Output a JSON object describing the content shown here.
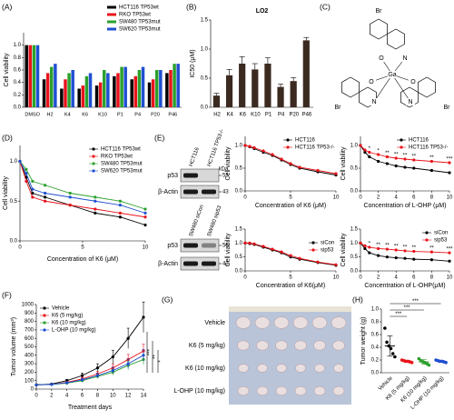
{
  "chart_data": [
    {
      "panel": "(A)",
      "type": "bar",
      "ylabel": "Cell viability",
      "categories": [
        "DMSO",
        "H2",
        "K4",
        "K6",
        "K10",
        "P1",
        "P4",
        "P20",
        "P46"
      ],
      "series": [
        {
          "name": "HCT116 TP53wt",
          "color": "#000000",
          "values": [
            1.0,
            0.45,
            0.3,
            0.3,
            0.35,
            0.5,
            0.45,
            0.4,
            0.55
          ]
        },
        {
          "name": "RKO TP53wt",
          "color": "#e8141b",
          "values": [
            1.0,
            0.55,
            0.45,
            0.35,
            0.4,
            0.55,
            0.5,
            0.45,
            0.6
          ]
        },
        {
          "name": "SW480 TP53mut",
          "color": "#2ca02c",
          "values": [
            1.0,
            0.65,
            0.55,
            0.5,
            0.6,
            0.65,
            0.6,
            0.6,
            0.7
          ]
        },
        {
          "name": "SW620 TP53mut",
          "color": "#1f4fd1",
          "values": [
            1.0,
            0.7,
            0.6,
            0.55,
            0.55,
            0.65,
            0.65,
            0.6,
            0.7
          ]
        }
      ],
      "ylim": [
        0,
        1.2
      ],
      "yticks": [
        {
          "value": 0,
          "label": "0.0"
        },
        0.2,
        0.4,
        0.6,
        0.8,
        {
          "value": 1,
          "label": "1.0"
        }
      ],
      "legend": "above"
    },
    {
      "panel": "(B)",
      "type": "bar",
      "title": "LO2",
      "ylabel": "IC50 (μM)",
      "categories": [
        "H2",
        "K4",
        "K6",
        "K10",
        "P1",
        "P4",
        "P20",
        "P46"
      ],
      "values": [
        0.2,
        0.55,
        0.75,
        0.65,
        0.75,
        0.35,
        0.45,
        1.15
      ],
      "errors": [
        0.04,
        0.1,
        0.12,
        0.1,
        0.1,
        0.05,
        0.06,
        0.05
      ],
      "color": "#3b2a20",
      "ylim": [
        0,
        1.5
      ],
      "yticks": [
        {
          "value": 0,
          "label": "0.0"
        },
        0.5,
        {
          "value": 1,
          "label": "1.0"
        },
        1.5
      ]
    },
    {
      "panel": "(D)",
      "type": "line",
      "xlabel": "Concentration of K6 (μM)",
      "ylabel": "Cell viability",
      "x": [
        0,
        0.5,
        1,
        2,
        4,
        6,
        8,
        10
      ],
      "series": [
        {
          "name": "HCT116 TP53wt",
          "color": "#000000",
          "values": [
            1.0,
            0.8,
            0.6,
            0.55,
            0.45,
            0.35,
            0.3,
            0.2
          ]
        },
        {
          "name": "RKO TP53wt",
          "color": "#e8141b",
          "values": [
            1.0,
            0.75,
            0.55,
            0.5,
            0.45,
            0.4,
            0.35,
            0.3
          ]
        },
        {
          "name": "SW480 TP53mut",
          "color": "#2ca02c",
          "values": [
            1.0,
            0.9,
            0.75,
            0.7,
            0.6,
            0.55,
            0.5,
            0.4
          ]
        },
        {
          "name": "SW620 TP53mut",
          "color": "#1f4fd1",
          "values": [
            1.0,
            0.85,
            0.65,
            0.6,
            0.55,
            0.5,
            0.45,
            0.35
          ]
        }
      ],
      "xlim": [
        0,
        10
      ],
      "xticks": [
        0,
        5,
        10
      ],
      "ylim": [
        0,
        1.2
      ],
      "yticks": [
        {
          "value": 0,
          "label": "0.0"
        },
        0.5,
        {
          "value": 1,
          "label": "1.0"
        }
      ],
      "legend": "top-right"
    },
    {
      "type": "line",
      "xlabel": "Concentration of K6 (μM)",
      "ylabel": "Cell viability",
      "x": [
        0,
        0.5,
        1,
        2,
        3,
        4,
        5,
        6,
        8,
        10
      ],
      "series": [
        {
          "name": "HCT116",
          "color": "#000000",
          "values": [
            1.0,
            0.97,
            0.93,
            0.85,
            0.78,
            0.68,
            0.58,
            0.5,
            0.42,
            0.35
          ]
        },
        {
          "name": "HCT116 TP53-/-",
          "color": "#e8141b",
          "values": [
            1.0,
            0.98,
            0.95,
            0.88,
            0.8,
            0.7,
            0.6,
            0.52,
            0.45,
            0.38
          ]
        }
      ],
      "xlim": [
        0,
        10
      ],
      "xticks": [
        0,
        5,
        10
      ],
      "ylim": [
        0,
        1.2
      ],
      "yticks": [
        {
          "value": 0,
          "label": "0.0"
        },
        0.5,
        {
          "value": 1,
          "label": "1.0"
        }
      ],
      "legend": "top-right"
    },
    {
      "type": "line",
      "xlabel": "Concentration of L-OHP (μM)",
      "ylabel": "Cell viability",
      "x": [
        0,
        0.5,
        1,
        2,
        3,
        4,
        5,
        6,
        8,
        10
      ],
      "series": [
        {
          "name": "HCT116",
          "color": "#000000",
          "values": [
            1.0,
            0.85,
            0.75,
            0.65,
            0.6,
            0.55,
            0.52,
            0.5,
            0.45,
            0.4
          ]
        },
        {
          "name": "HCT116 TP53-/-",
          "color": "#e8141b",
          "values": [
            1.0,
            0.9,
            0.85,
            0.8,
            0.75,
            0.72,
            0.7,
            0.68,
            0.65,
            0.62
          ]
        }
      ],
      "significance": [
        null,
        null,
        "*",
        "*",
        "**",
        "**",
        "**",
        "**",
        "**",
        "***"
      ],
      "xlim": [
        0,
        10
      ],
      "xticks": [
        0,
        2,
        4,
        6,
        8,
        10
      ],
      "ylim": [
        0,
        1.2
      ],
      "yticks": [
        {
          "value": 0,
          "label": "0.0"
        },
        0.5,
        {
          "value": 1,
          "label": "1.0"
        }
      ],
      "legend": "top-right"
    },
    {
      "type": "line",
      "xlabel": "Concentration of K6(μM)",
      "ylabel": "Cell viability",
      "x": [
        0,
        0.5,
        1,
        2,
        3,
        4,
        5,
        6,
        8,
        10
      ],
      "series": [
        {
          "name": "siCon",
          "color": "#000000",
          "values": [
            1.0,
            0.98,
            0.95,
            0.85,
            0.75,
            0.65,
            0.5,
            0.42,
            0.3,
            0.2
          ]
        },
        {
          "name": "sip53",
          "color": "#e8141b",
          "values": [
            1.0,
            1.0,
            0.97,
            0.88,
            0.78,
            0.68,
            0.55,
            0.45,
            0.32,
            0.22
          ]
        }
      ],
      "xlim": [
        0,
        10
      ],
      "xticks": [
        0,
        5,
        10
      ],
      "ylim": [
        0,
        1.5
      ],
      "yticks": [
        {
          "value": 0,
          "label": "0.0"
        },
        0.5,
        {
          "value": 1,
          "label": "1.0"
        },
        1.5
      ],
      "legend": "center-right"
    },
    {
      "type": "line",
      "xlabel": "Concentration of L-OHP(μM)",
      "ylabel": "Cell viability",
      "x": [
        0,
        0.5,
        1,
        2,
        3,
        4,
        5,
        6,
        8,
        10
      ],
      "series": [
        {
          "name": "siCon",
          "color": "#000000",
          "values": [
            1.0,
            0.8,
            0.65,
            0.55,
            0.5,
            0.47,
            0.45,
            0.42,
            0.4,
            0.35
          ]
        },
        {
          "name": "sip53",
          "color": "#e8141b",
          "values": [
            1.0,
            0.9,
            0.85,
            0.8,
            0.78,
            0.75,
            0.72,
            0.7,
            0.68,
            0.65
          ]
        }
      ],
      "significance": [
        null,
        null,
        "*",
        "**",
        "**",
        "**",
        "**",
        "**",
        "**",
        "***"
      ],
      "xlim": [
        0,
        10
      ],
      "xticks": [
        0,
        2,
        4,
        6,
        8,
        10
      ],
      "ylim": [
        0,
        1.5
      ],
      "yticks": [
        {
          "value": 0,
          "label": "0.0"
        },
        0.5,
        {
          "value": 1,
          "label": "1.0"
        },
        1.5
      ],
      "legend": "top-right"
    },
    {
      "panel": "(F)",
      "type": "line",
      "xlabel": "Treatment days",
      "ylabel": "Tumor volume (mm³)",
      "x": [
        0,
        2,
        4,
        6,
        8,
        10,
        12,
        14
      ],
      "series": [
        {
          "name": "Vehicle",
          "color": "#000000",
          "values": [
            50,
            60,
            100,
            160,
            250,
            380,
            600,
            850
          ],
          "errors": [
            5,
            8,
            15,
            30,
            50,
            80,
            120,
            180
          ]
        },
        {
          "name": "K6 (5 mg/kg)",
          "color": "#e8141b",
          "values": [
            50,
            55,
            80,
            120,
            180,
            250,
            350,
            450
          ],
          "errors": [
            5,
            6,
            10,
            20,
            30,
            45,
            60,
            80
          ]
        },
        {
          "name": "K6 (10 mg/kg)",
          "color": "#2ca02c",
          "values": [
            50,
            55,
            70,
            100,
            150,
            200,
            280,
            350
          ],
          "errors": [
            5,
            6,
            10,
            15,
            25,
            35,
            50,
            60
          ]
        },
        {
          "name": "L-OHP (10 mg/kg)",
          "color": "#1f4fd1",
          "values": [
            50,
            55,
            75,
            110,
            160,
            220,
            300,
            400
          ],
          "errors": [
            5,
            6,
            10,
            18,
            28,
            40,
            55,
            70
          ]
        }
      ],
      "annotations": [
        "***",
        "**",
        "*"
      ],
      "xlim": [
        0,
        14
      ],
      "xticks": [
        0,
        2,
        4,
        6,
        8,
        10,
        12,
        14
      ],
      "ylim": [
        0,
        1000
      ],
      "yticks": [
        0,
        100,
        200,
        300,
        400,
        500,
        600,
        700,
        800,
        900,
        1000
      ],
      "legend": "top-left"
    },
    {
      "panel": "(H)",
      "type": "dotbar",
      "ylabel": "Tumor weight (g)",
      "groups": [
        {
          "name": "Vehicle",
          "color": "#000000",
          "points": [
            0.7,
            0.48,
            0.42,
            0.38,
            0.3,
            0.25
          ],
          "mean": 0.42,
          "error": 0.16
        },
        {
          "name": "K6 (5 mg/kg)",
          "color": "#e8141b",
          "points": [
            0.2,
            0.19,
            0.18,
            0.18,
            0.17,
            0.16
          ],
          "mean": 0.18,
          "error": 0.015
        },
        {
          "name": "K6 (10 mg/kg)",
          "color": "#2ca02c",
          "points": [
            0.22,
            0.19,
            0.17,
            0.16,
            0.14,
            0.12
          ],
          "mean": 0.17,
          "error": 0.035
        },
        {
          "name": "L-OHP (10 mg/kg)",
          "color": "#1f4fd1",
          "points": [
            0.2,
            0.19,
            0.18,
            0.18,
            0.17,
            0.16
          ],
          "mean": 0.18,
          "error": 0.015
        }
      ],
      "significance": [
        "***",
        "***",
        "***"
      ],
      "ylim": [
        0,
        1
      ],
      "yticks": [
        {
          "value": 0,
          "label": "0.0"
        },
        0.2,
        0.4,
        0.6,
        0.8,
        {
          "value": 1,
          "label": "1.0"
        }
      ]
    }
  ],
  "structure": {
    "panel": "(C)",
    "atoms": [
      "Br",
      "O",
      "N",
      "Ga",
      "O",
      "N",
      "Br",
      "O",
      "N",
      "Br"
    ]
  },
  "blots": {
    "panel": "(E)",
    "kda": "kDa",
    "panels": [
      {
        "lanes": [
          "HCT116",
          "HCT116 TP53-/-"
        ],
        "rows": [
          {
            "label": "p53",
            "size": "55"
          },
          {
            "label": "β-Actin",
            "size": "43"
          }
        ]
      },
      {
        "lanes": [
          "SW480 siCon",
          "SW480 sip53"
        ],
        "rows": [
          {
            "label": "p53",
            "size": "55"
          },
          {
            "label": "β-Actin",
            "size": "43"
          }
        ]
      }
    ]
  },
  "photo": {
    "panel": "(G)",
    "rows": [
      "Vehicle",
      "K6 (5 mg/kg)",
      "K6 (10 mg/kg)",
      "L-OHP (10 mg/kg)"
    ]
  }
}
